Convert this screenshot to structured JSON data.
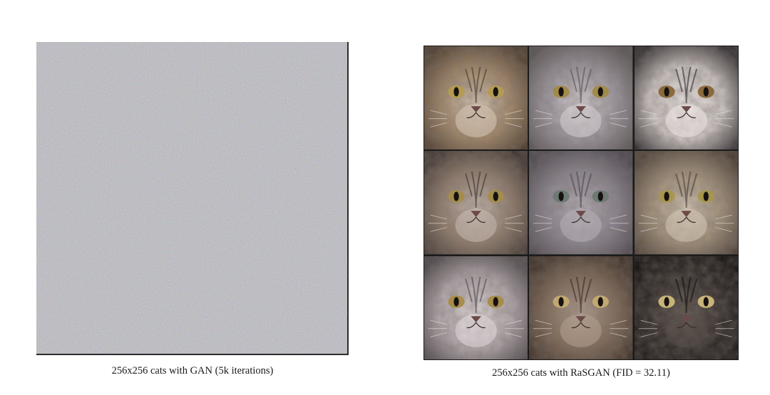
{
  "figure": {
    "left_panel": {
      "caption": "256x256 cats with GAN (5k iterations)",
      "noise_base_color": "#8a8990"
    },
    "right_panel": {
      "caption": "256x256 cats with RaSGAN (FID = 32.11)",
      "cats": [
        {
          "fur": "#a08466",
          "dark": "#4a3a2c",
          "light": "#d8c8b6",
          "eye": "#b59a52"
        },
        {
          "fur": "#9c96a0",
          "dark": "#5a5456",
          "light": "#d6d0d4",
          "eye": "#a28a4a"
        },
        {
          "fur": "#cfc8c6",
          "dark": "#2e2a2e",
          "light": "#ece6e4",
          "eye": "#8c6a3c"
        },
        {
          "fur": "#8e7a6a",
          "dark": "#3e3430",
          "light": "#c8bab0",
          "eye": "#a48c4c"
        },
        {
          "fur": "#8a8490",
          "dark": "#4c4650",
          "light": "#b8b0b8",
          "eye": "#6e7a72"
        },
        {
          "fur": "#a08e78",
          "dark": "#4a3e34",
          "light": "#d4c6b4",
          "eye": "#a8964e"
        },
        {
          "fur": "#b4aab0",
          "dark": "#4e484c",
          "light": "#e0d8da",
          "eye": "#a88c4a"
        },
        {
          "fur": "#7c6654",
          "dark": "#3a2c24",
          "light": "#b4a090",
          "eye": "#c0a870"
        },
        {
          "fur": "#2e2826",
          "dark": "#141010",
          "light": "#5a504a",
          "eye": "#c8b478"
        }
      ]
    }
  }
}
